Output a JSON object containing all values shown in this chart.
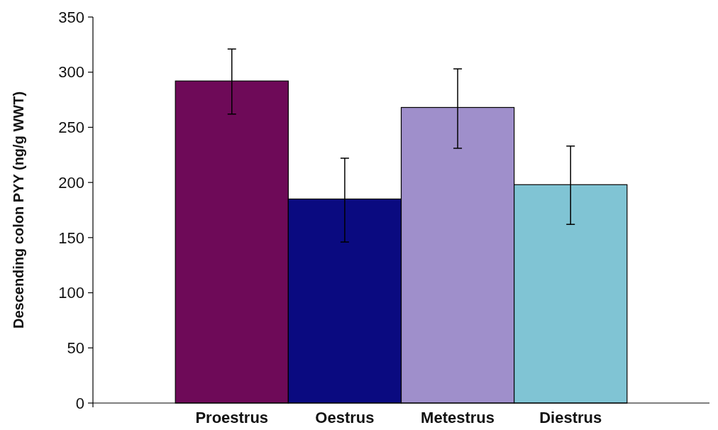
{
  "chart_data": {
    "type": "bar",
    "ylabel": "Descending colon PYY (ng/g WWT)",
    "categories": [
      "Proestrus",
      "Oestrus",
      "Metestrus",
      "Diestrus"
    ],
    "values": [
      292,
      185,
      268,
      198
    ],
    "colors": [
      "#6e0a58",
      "#0a0a80",
      "#9f8fcb",
      "#80c4d4"
    ],
    "errors": [
      [
        262,
        321
      ],
      [
        146,
        222
      ],
      [
        231,
        303
      ],
      [
        162,
        233
      ]
    ],
    "ylim": [
      0,
      350
    ],
    "yticks": [
      0,
      50,
      100,
      150,
      200,
      250,
      300,
      350
    ],
    "grid": false
  }
}
